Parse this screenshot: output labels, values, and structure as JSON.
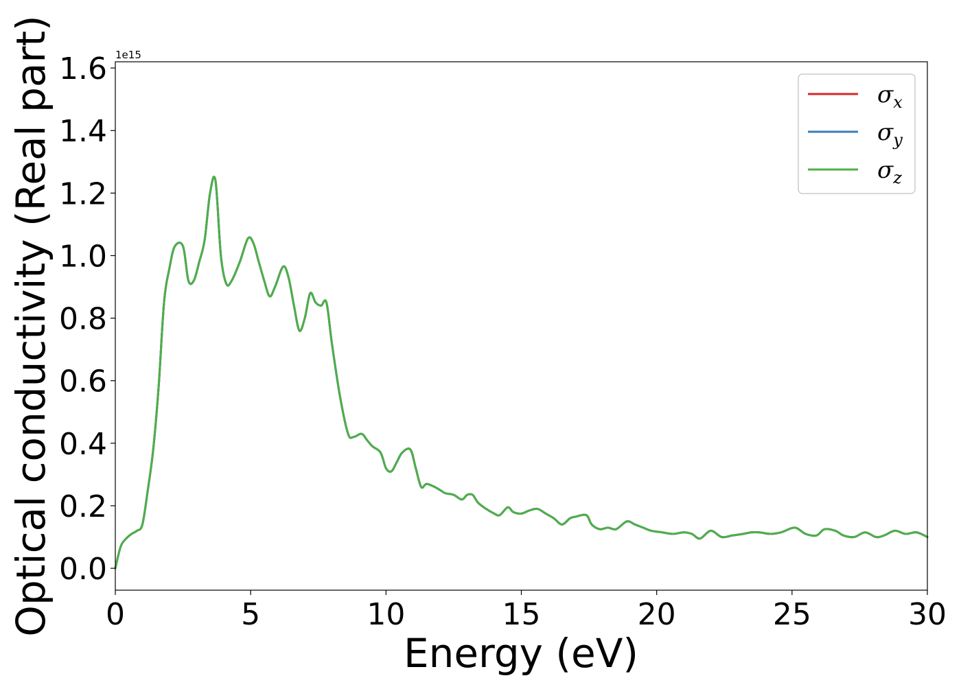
{
  "chart_data": {
    "type": "line",
    "title": "",
    "xlabel": "Energy (eV)",
    "ylabel": "Optical conductivity (Real part)",
    "y_offset_text": "1e15",
    "xlim": [
      0,
      30
    ],
    "ylim": [
      -0.07,
      1.62
    ],
    "xticks": [
      0,
      5,
      10,
      15,
      20,
      25,
      30
    ],
    "xtick_labels": [
      "0",
      "5",
      "10",
      "15",
      "20",
      "25",
      "30"
    ],
    "yticks": [
      0.0,
      0.2,
      0.4,
      0.6,
      0.8,
      1.0,
      1.2,
      1.4,
      1.6
    ],
    "ytick_labels": [
      "0.0",
      "0.2",
      "0.4",
      "0.6",
      "0.8",
      "1.0",
      "1.2",
      "1.4",
      "1.6"
    ],
    "grid": false,
    "legend_position": "top-right",
    "series": [
      {
        "name": "σx",
        "symbol": "σ",
        "subscript": "x",
        "color": "#d62728",
        "x": [
          0,
          0.2,
          0.4,
          0.6,
          0.8,
          1.0,
          1.2,
          1.4,
          1.6,
          1.8,
          2.0,
          2.2,
          2.5,
          2.7,
          2.9,
          3.1,
          3.3,
          3.5,
          3.7,
          3.9,
          4.1,
          4.3,
          4.6,
          4.9,
          5.1,
          5.3,
          5.5,
          5.7,
          5.9,
          6.2,
          6.4,
          6.6,
          6.8,
          7.0,
          7.2,
          7.4,
          7.6,
          7.8,
          8.0,
          8.3,
          8.6,
          8.8,
          9.1,
          9.3,
          9.5,
          9.8,
          10.0,
          10.2,
          10.4,
          10.6,
          10.9,
          11.1,
          11.3,
          11.5,
          11.8,
          12.0,
          12.2,
          12.5,
          12.8,
          13.0,
          13.2,
          13.4,
          13.7,
          14.0,
          14.2,
          14.5,
          14.7,
          15.0,
          15.3,
          15.6,
          15.9,
          16.2,
          16.5,
          16.8,
          17.0,
          17.4,
          17.6,
          17.9,
          18.2,
          18.5,
          18.9,
          19.2,
          19.5,
          19.8,
          20.2,
          20.6,
          21.0,
          21.3,
          21.6,
          22.0,
          22.4,
          22.8,
          23.2,
          23.5,
          23.8,
          24.2,
          24.6,
          25.1,
          25.5,
          25.9,
          26.2,
          26.6,
          26.9,
          27.3,
          27.7,
          28.1,
          28.4,
          28.8,
          29.2,
          29.6,
          30.0
        ],
        "y": [
          0.0,
          0.07,
          0.095,
          0.11,
          0.12,
          0.14,
          0.25,
          0.38,
          0.58,
          0.85,
          0.96,
          1.03,
          1.03,
          0.92,
          0.92,
          0.98,
          1.05,
          1.2,
          1.24,
          1.0,
          0.91,
          0.92,
          0.98,
          1.055,
          1.04,
          0.98,
          0.92,
          0.87,
          0.9,
          0.965,
          0.93,
          0.84,
          0.76,
          0.8,
          0.88,
          0.85,
          0.84,
          0.85,
          0.72,
          0.55,
          0.43,
          0.42,
          0.43,
          0.41,
          0.39,
          0.37,
          0.32,
          0.31,
          0.34,
          0.37,
          0.38,
          0.32,
          0.26,
          0.27,
          0.26,
          0.25,
          0.24,
          0.235,
          0.22,
          0.235,
          0.235,
          0.21,
          0.19,
          0.175,
          0.17,
          0.195,
          0.18,
          0.175,
          0.185,
          0.19,
          0.175,
          0.16,
          0.14,
          0.16,
          0.165,
          0.17,
          0.14,
          0.125,
          0.13,
          0.125,
          0.15,
          0.14,
          0.13,
          0.12,
          0.115,
          0.11,
          0.115,
          0.11,
          0.095,
          0.12,
          0.1,
          0.105,
          0.11,
          0.115,
          0.115,
          0.11,
          0.115,
          0.13,
          0.11,
          0.105,
          0.125,
          0.12,
          0.105,
          0.1,
          0.115,
          0.1,
          0.105,
          0.12,
          0.11,
          0.115,
          0.1
        ]
      },
      {
        "name": "σy",
        "symbol": "σ",
        "subscript": "y",
        "color": "#377eb8",
        "x": [
          0,
          0.2,
          0.4,
          0.6,
          0.8,
          1.0,
          1.2,
          1.4,
          1.6,
          1.8,
          2.0,
          2.2,
          2.5,
          2.7,
          2.9,
          3.1,
          3.3,
          3.5,
          3.7,
          3.9,
          4.1,
          4.3,
          4.6,
          4.9,
          5.1,
          5.3,
          5.5,
          5.7,
          5.9,
          6.2,
          6.4,
          6.6,
          6.8,
          7.0,
          7.2,
          7.4,
          7.6,
          7.8,
          8.0,
          8.3,
          8.6,
          8.8,
          9.1,
          9.3,
          9.5,
          9.8,
          10.0,
          10.2,
          10.4,
          10.6,
          10.9,
          11.1,
          11.3,
          11.5,
          11.8,
          12.0,
          12.2,
          12.5,
          12.8,
          13.0,
          13.2,
          13.4,
          13.7,
          14.0,
          14.2,
          14.5,
          14.7,
          15.0,
          15.3,
          15.6,
          15.9,
          16.2,
          16.5,
          16.8,
          17.0,
          17.4,
          17.6,
          17.9,
          18.2,
          18.5,
          18.9,
          19.2,
          19.5,
          19.8,
          20.2,
          20.6,
          21.0,
          21.3,
          21.6,
          22.0,
          22.4,
          22.8,
          23.2,
          23.5,
          23.8,
          24.2,
          24.6,
          25.1,
          25.5,
          25.9,
          26.2,
          26.6,
          26.9,
          27.3,
          27.7,
          28.1,
          28.4,
          28.8,
          29.2,
          29.6,
          30.0
        ],
        "y": [
          0.0,
          0.07,
          0.095,
          0.11,
          0.12,
          0.14,
          0.25,
          0.38,
          0.58,
          0.85,
          0.96,
          1.03,
          1.03,
          0.92,
          0.92,
          0.98,
          1.05,
          1.2,
          1.24,
          1.0,
          0.91,
          0.92,
          0.98,
          1.055,
          1.04,
          0.98,
          0.92,
          0.87,
          0.9,
          0.965,
          0.93,
          0.84,
          0.76,
          0.8,
          0.88,
          0.85,
          0.84,
          0.85,
          0.72,
          0.55,
          0.43,
          0.42,
          0.43,
          0.41,
          0.39,
          0.37,
          0.32,
          0.31,
          0.34,
          0.37,
          0.38,
          0.32,
          0.26,
          0.27,
          0.26,
          0.25,
          0.24,
          0.235,
          0.22,
          0.235,
          0.235,
          0.21,
          0.19,
          0.175,
          0.17,
          0.195,
          0.18,
          0.175,
          0.185,
          0.19,
          0.175,
          0.16,
          0.14,
          0.16,
          0.165,
          0.17,
          0.14,
          0.125,
          0.13,
          0.125,
          0.15,
          0.14,
          0.13,
          0.12,
          0.115,
          0.11,
          0.115,
          0.11,
          0.095,
          0.12,
          0.1,
          0.105,
          0.11,
          0.115,
          0.115,
          0.11,
          0.115,
          0.13,
          0.11,
          0.105,
          0.125,
          0.12,
          0.105,
          0.1,
          0.115,
          0.1,
          0.105,
          0.12,
          0.11,
          0.115,
          0.1
        ]
      },
      {
        "name": "σz",
        "symbol": "σ",
        "subscript": "z",
        "color": "#4daf4a",
        "x": [
          0,
          0.2,
          0.4,
          0.6,
          0.8,
          1.0,
          1.2,
          1.4,
          1.6,
          1.8,
          2.0,
          2.2,
          2.5,
          2.7,
          2.9,
          3.1,
          3.3,
          3.5,
          3.7,
          3.9,
          4.1,
          4.3,
          4.6,
          4.9,
          5.1,
          5.3,
          5.5,
          5.7,
          5.9,
          6.2,
          6.4,
          6.6,
          6.8,
          7.0,
          7.2,
          7.4,
          7.6,
          7.8,
          8.0,
          8.3,
          8.6,
          8.8,
          9.1,
          9.3,
          9.5,
          9.8,
          10.0,
          10.2,
          10.4,
          10.6,
          10.9,
          11.1,
          11.3,
          11.5,
          11.8,
          12.0,
          12.2,
          12.5,
          12.8,
          13.0,
          13.2,
          13.4,
          13.7,
          14.0,
          14.2,
          14.5,
          14.7,
          15.0,
          15.3,
          15.6,
          15.9,
          16.2,
          16.5,
          16.8,
          17.0,
          17.4,
          17.6,
          17.9,
          18.2,
          18.5,
          18.9,
          19.2,
          19.5,
          19.8,
          20.2,
          20.6,
          21.0,
          21.3,
          21.6,
          22.0,
          22.4,
          22.8,
          23.2,
          23.5,
          23.8,
          24.2,
          24.6,
          25.1,
          25.5,
          25.9,
          26.2,
          26.6,
          26.9,
          27.3,
          27.7,
          28.1,
          28.4,
          28.8,
          29.2,
          29.6,
          30.0
        ],
        "y": [
          0.0,
          0.07,
          0.095,
          0.11,
          0.12,
          0.14,
          0.25,
          0.38,
          0.58,
          0.85,
          0.96,
          1.03,
          1.03,
          0.92,
          0.92,
          0.98,
          1.05,
          1.2,
          1.24,
          1.0,
          0.91,
          0.92,
          0.98,
          1.055,
          1.04,
          0.98,
          0.92,
          0.87,
          0.9,
          0.965,
          0.93,
          0.84,
          0.76,
          0.8,
          0.88,
          0.85,
          0.84,
          0.85,
          0.72,
          0.55,
          0.43,
          0.42,
          0.43,
          0.41,
          0.39,
          0.37,
          0.32,
          0.31,
          0.34,
          0.37,
          0.38,
          0.32,
          0.26,
          0.27,
          0.26,
          0.25,
          0.24,
          0.235,
          0.22,
          0.235,
          0.235,
          0.21,
          0.19,
          0.175,
          0.17,
          0.195,
          0.18,
          0.175,
          0.185,
          0.19,
          0.175,
          0.16,
          0.14,
          0.16,
          0.165,
          0.17,
          0.14,
          0.125,
          0.13,
          0.125,
          0.15,
          0.14,
          0.13,
          0.12,
          0.115,
          0.11,
          0.115,
          0.11,
          0.095,
          0.12,
          0.1,
          0.105,
          0.11,
          0.115,
          0.115,
          0.11,
          0.115,
          0.13,
          0.11,
          0.105,
          0.125,
          0.12,
          0.105,
          0.1,
          0.115,
          0.1,
          0.105,
          0.12,
          0.11,
          0.115,
          0.1
        ]
      }
    ]
  }
}
